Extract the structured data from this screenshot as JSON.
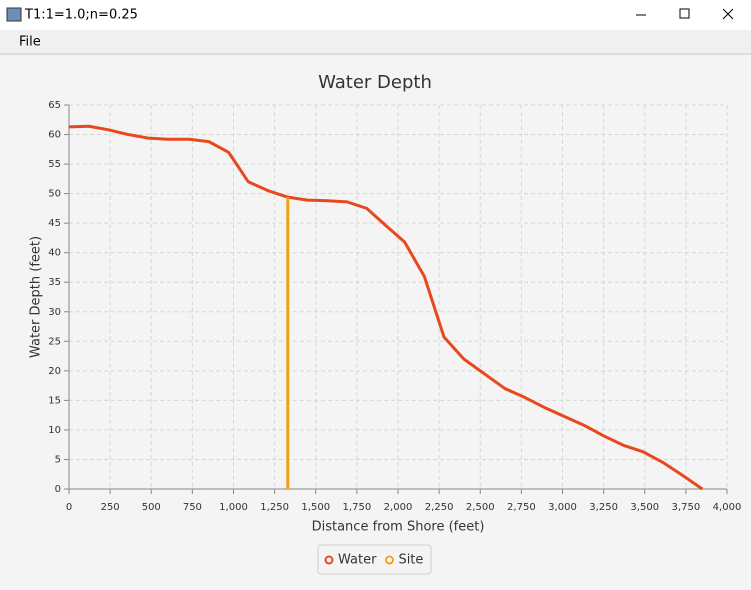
{
  "window": {
    "title": "T1:1=1.0;n=0.25",
    "menu": [
      "File"
    ]
  },
  "chart_data": {
    "type": "line",
    "title": "Water Depth",
    "x_label": "Distance from Shore (feet)",
    "y_label": "Water Depth (feet)",
    "series": [
      {
        "name": "Water",
        "color": "#e8481d",
        "x": [
          0,
          120,
          240,
          360,
          480,
          600,
          730,
          850,
          970,
          1090,
          1210,
          1330,
          1450,
          1570,
          1690,
          1810,
          1930,
          2040,
          2160,
          2280,
          2400,
          2520,
          2650,
          2770,
          2890,
          3010,
          3130,
          3250,
          3370,
          3490,
          3610,
          3730,
          3850
        ],
        "values": [
          61.3,
          61.4,
          60.8,
          60.0,
          59.4,
          59.2,
          59.2,
          58.8,
          57.0,
          52.0,
          50.5,
          49.4,
          48.9,
          48.8,
          48.6,
          47.5,
          44.5,
          41.8,
          36.0,
          25.7,
          22.0,
          19.6,
          17.0,
          15.5,
          13.8,
          12.3,
          10.8,
          9.0,
          7.4,
          6.3,
          4.5,
          2.3,
          0
        ]
      },
      {
        "name": "Site",
        "color": "#f59e1b",
        "x": [
          1330,
          1330
        ],
        "values": [
          0,
          49.4
        ]
      }
    ],
    "xlim": [
      0,
      4000
    ],
    "xticks": [
      0,
      250,
      500,
      750,
      {
        "value": 1000,
        "label": "1,000"
      },
      {
        "value": 1250,
        "label": "1,250"
      },
      {
        "value": 1500,
        "label": "1,500"
      },
      {
        "value": 1750,
        "label": "1,750"
      },
      {
        "value": 2000,
        "label": "2,000"
      },
      {
        "value": 2250,
        "label": "2,250"
      },
      {
        "value": 2500,
        "label": "2,500"
      },
      {
        "value": 2750,
        "label": "2,750"
      },
      {
        "value": 3000,
        "label": "3,000"
      },
      {
        "value": 3250,
        "label": "3,250"
      },
      {
        "value": 3500,
        "label": "3,500"
      },
      {
        "value": 3750,
        "label": "3,750"
      },
      {
        "value": 4000,
        "label": "4,000"
      }
    ],
    "ylim": [
      0,
      65
    ],
    "yticks": [
      0,
      5,
      10,
      15,
      20,
      25,
      30,
      35,
      40,
      45,
      50,
      55,
      60,
      65
    ],
    "grid": true,
    "legend": "bottom"
  }
}
